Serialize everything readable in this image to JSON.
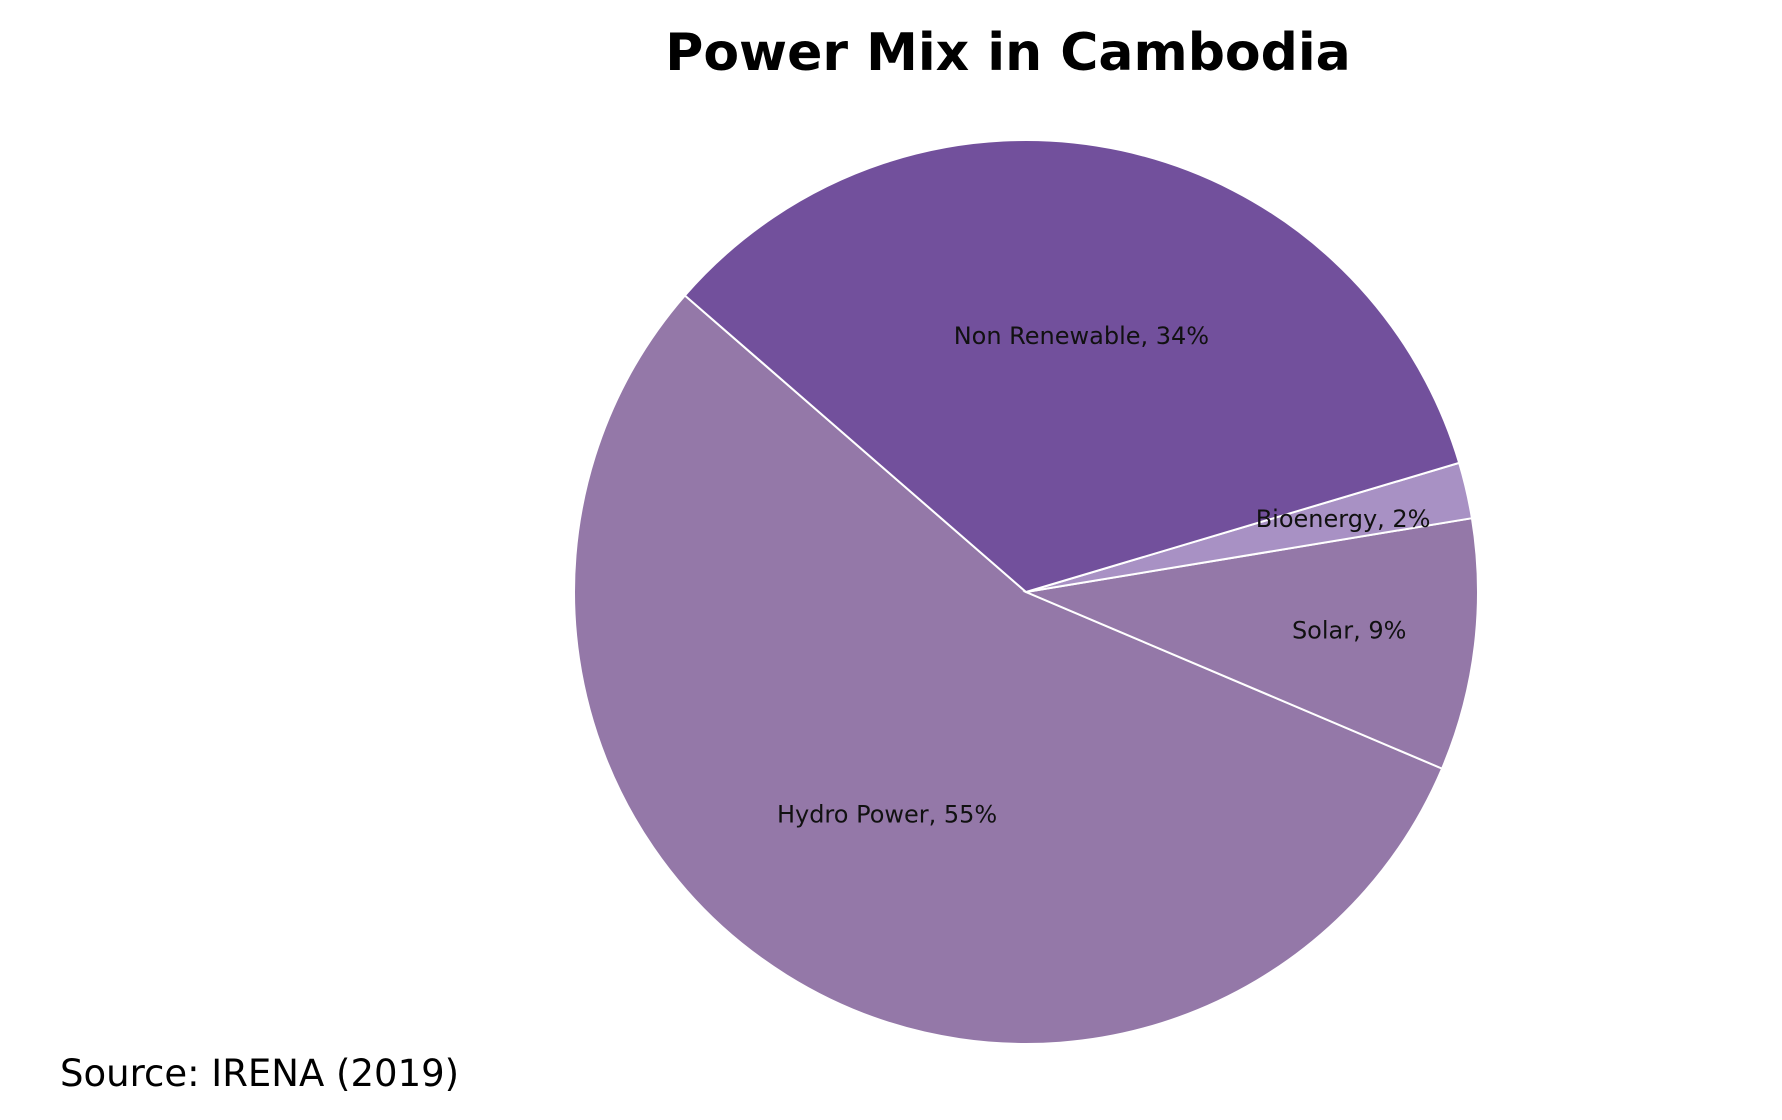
{
  "chart_data": {
    "type": "pie",
    "title": "Power Mix in Cambodia",
    "slices": [
      {
        "label": "Hydro Power",
        "value": 55,
        "display": "Hydro Power, 55%",
        "color": "#9478a8"
      },
      {
        "label": "Solar",
        "value": 9,
        "display": "Solar, 9%",
        "color": "#9478a8"
      },
      {
        "label": "Bioenergy",
        "value": 2,
        "display": "Bioenergy, 2%",
        "color": "#a891c4"
      },
      {
        "label": "Non Renewable",
        "value": 34,
        "display": "Non Renewable, 34%",
        "color": "#72509c"
      }
    ],
    "legend": "none",
    "data_labels": "category and percentage"
  },
  "source": "Source: IRENA (2019)"
}
